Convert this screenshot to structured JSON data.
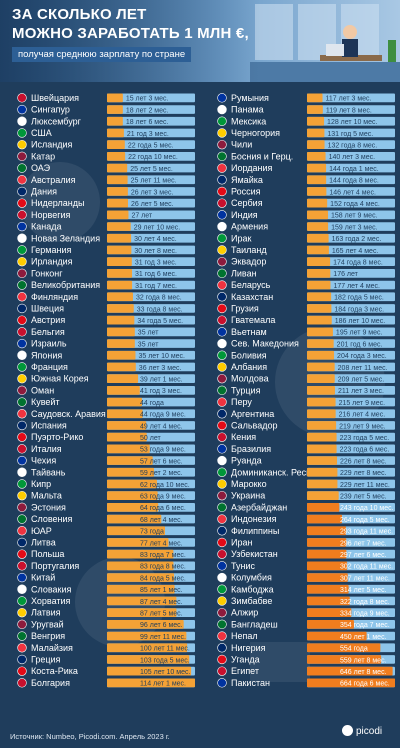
{
  "title": {
    "line1": "ЗА СКОЛЬКО ЛЕТ",
    "line2": "МОЖНО ЗАРАБОТАТЬ 1 МЛН €,",
    "subtitle": "получая среднюю зарплату по стране"
  },
  "footer": {
    "source": "Источник: Numbeo, Picodi.com. Апрель 2023 г.",
    "logo": "picodi"
  },
  "colors": {
    "background": "#1f3d5c",
    "bar_blue": "#8ec5ea",
    "bar_orange": "#f4a236",
    "bar_orange_dark": "#f07d1e",
    "label": "#ffffff"
  },
  "chart_data": {
    "type": "bar",
    "orientation": "horizontal",
    "unit": "years to earn 1 million €",
    "series": [
      {
        "country": "Швейцария",
        "label": "15 лет 3 мес.",
        "value": 15.25
      },
      {
        "country": "Сингапур",
        "label": "18 лет 2 мес.",
        "value": 18.17
      },
      {
        "country": "Люксембург",
        "label": "18 лет 6 мес.",
        "value": 18.5
      },
      {
        "country": "США",
        "label": "21 год 3 мес.",
        "value": 21.25
      },
      {
        "country": "Исландия",
        "label": "22 года 5 мес.",
        "value": 22.42
      },
      {
        "country": "Катар",
        "label": "22 года 10 мес.",
        "value": 22.83
      },
      {
        "country": "ОАЭ",
        "label": "25 лет 5 мес.",
        "value": 25.42
      },
      {
        "country": "Австралия",
        "label": "25 лет 11 мес.",
        "value": 25.92
      },
      {
        "country": "Дания",
        "label": "26 лет 3 мес.",
        "value": 26.25
      },
      {
        "country": "Нидерланды",
        "label": "26 лет 5 мес.",
        "value": 26.42
      },
      {
        "country": "Норвегия",
        "label": "27 лет",
        "value": 27.0
      },
      {
        "country": "Канада",
        "label": "29 лет 10 мес.",
        "value": 29.83
      },
      {
        "country": "Новая Зеландия",
        "label": "30 лет 4 мес.",
        "value": 30.33
      },
      {
        "country": "Германия",
        "label": "30 лет 8 мес.",
        "value": 30.67
      },
      {
        "country": "Ирландия",
        "label": "31 год 3 мес.",
        "value": 31.25
      },
      {
        "country": "Гонконг",
        "label": "31 год 6 мес.",
        "value": 31.5
      },
      {
        "country": "Великобритания",
        "label": "31 год 7 мес.",
        "value": 31.58
      },
      {
        "country": "Финляндия",
        "label": "32 года 8 мес.",
        "value": 32.67
      },
      {
        "country": "Швеция",
        "label": "33 года 8 мес.",
        "value": 33.67
      },
      {
        "country": "Австрия",
        "label": "34 года 5 мес.",
        "value": 34.42
      },
      {
        "country": "Бельгия",
        "label": "35 лет",
        "value": 35.0
      },
      {
        "country": "Израиль",
        "label": "35 лет",
        "value": 35.0
      },
      {
        "country": "Япония",
        "label": "35 лет 10 мес.",
        "value": 35.83
      },
      {
        "country": "Франция",
        "label": "36 лет 3 мес.",
        "value": 36.25
      },
      {
        "country": "Южная Корея",
        "label": "39 лет 1 мес.",
        "value": 39.08
      },
      {
        "country": "Оман",
        "label": "41 год 3 мес.",
        "value": 41.25
      },
      {
        "country": "Кувейт",
        "label": "44 года",
        "value": 44.0
      },
      {
        "country": "Саудовск. Аравия",
        "label": "44 года 9 мес.",
        "value": 44.75
      },
      {
        "country": "Испания",
        "label": "49 лет 4 мес.",
        "value": 49.33
      },
      {
        "country": "Пуэрто-Рико",
        "label": "50 лет",
        "value": 50.0
      },
      {
        "country": "Италия",
        "label": "53 года 9 мес.",
        "value": 53.75
      },
      {
        "country": "Чехия",
        "label": "57 лет 6 мес.",
        "value": 57.5
      },
      {
        "country": "Тайвань",
        "label": "59 лет 2 мес.",
        "value": 59.17
      },
      {
        "country": "Кипр",
        "label": "62 года 10 мес.",
        "value": 62.83
      },
      {
        "country": "Мальта",
        "label": "63 года 9 мес.",
        "value": 63.75
      },
      {
        "country": "Эстония",
        "label": "64 года 6 мес.",
        "value": 64.5
      },
      {
        "country": "Словения",
        "label": "68 лет 4 мес.",
        "value": 68.33
      },
      {
        "country": "ЮАР",
        "label": "73 года",
        "value": 73.0
      },
      {
        "country": "Литва",
        "label": "77 лет 4 мес.",
        "value": 77.33
      },
      {
        "country": "Польша",
        "label": "83 года 7 мес.",
        "value": 83.58
      },
      {
        "country": "Португалия",
        "label": "83 года 8 мес.",
        "value": 83.67
      },
      {
        "country": "Китай",
        "label": "84 года 5 мес.",
        "value": 84.42
      },
      {
        "country": "Словакия",
        "label": "85 лет 1 мес.",
        "value": 85.08
      },
      {
        "country": "Хорватия",
        "label": "87 лет 4 мес.",
        "value": 87.33
      },
      {
        "country": "Латвия",
        "label": "87 лет 5 мес.",
        "value": 87.42
      },
      {
        "country": "Уругвай",
        "label": "96 лет 6 мес.",
        "value": 96.5
      },
      {
        "country": "Венгрия",
        "label": "99 лет 11 мес.",
        "value": 99.92
      },
      {
        "country": "Малайзия",
        "label": "100 лет 11 мес.",
        "value": 100.92
      },
      {
        "country": "Греция",
        "label": "103 года 5 мес.",
        "value": 103.42
      },
      {
        "country": "Коста-Рика",
        "label": "105 лет 10 мес.",
        "value": 105.83
      },
      {
        "country": "Болгария",
        "label": "114 лет 1 мес.",
        "value": 114.08
      },
      {
        "country": "Румыния",
        "label": "117 лет 3 мес.",
        "value": 117.25
      },
      {
        "country": "Панама",
        "label": "119 лет 8 мес.",
        "value": 119.67
      },
      {
        "country": "Мексика",
        "label": "128 лет 10 мес.",
        "value": 128.83
      },
      {
        "country": "Черногория",
        "label": "131 год 5 мес.",
        "value": 131.42
      },
      {
        "country": "Чили",
        "label": "132 года 8 мес.",
        "value": 132.67
      },
      {
        "country": "Босния и Герц.",
        "label": "140 лет 3 мес.",
        "value": 140.25
      },
      {
        "country": "Иордания",
        "label": "144 года 1 мес.",
        "value": 144.08
      },
      {
        "country": "Ямайка",
        "label": "144 года 8 мес.",
        "value": 144.67
      },
      {
        "country": "Россия",
        "label": "146 лет 4 мес.",
        "value": 146.33
      },
      {
        "country": "Сербия",
        "label": "152 года 4 мес.",
        "value": 152.33
      },
      {
        "country": "Индия",
        "label": "158 лет 9 мес.",
        "value": 158.75
      },
      {
        "country": "Армения",
        "label": "159 лет 3 мес.",
        "value": 159.25
      },
      {
        "country": "Ирак",
        "label": "163 года 2 мес.",
        "value": 163.17
      },
      {
        "country": "Таиланд",
        "label": "165 лет 4 мес.",
        "value": 165.33
      },
      {
        "country": "Эквадор",
        "label": "174 года 8 мес.",
        "value": 174.67
      },
      {
        "country": "Ливан",
        "label": "176 лет",
        "value": 176.0
      },
      {
        "country": "Беларусь",
        "label": "177 лет 4 мес.",
        "value": 177.33
      },
      {
        "country": "Казахстан",
        "label": "182 года 5 мес.",
        "value": 182.42
      },
      {
        "country": "Грузия",
        "label": "184 года 3 мес.",
        "value": 184.25
      },
      {
        "country": "Гватемала",
        "label": "186 лет 10 мес.",
        "value": 186.83
      },
      {
        "country": "Вьетнам",
        "label": "195 лет 9 мес.",
        "value": 195.75
      },
      {
        "country": "Сев. Македония",
        "label": "201 год 6 мес.",
        "value": 201.5
      },
      {
        "country": "Боливия",
        "label": "204 года 3 мес.",
        "value": 204.25
      },
      {
        "country": "Албания",
        "label": "208 лет 11 мес.",
        "value": 208.92
      },
      {
        "country": "Молдова",
        "label": "209 лет 5 мес.",
        "value": 209.42
      },
      {
        "country": "Турция",
        "label": "211 лет 3 мес.",
        "value": 211.25
      },
      {
        "country": "Перу",
        "label": "215 лет 9 мес.",
        "value": 215.75
      },
      {
        "country": "Аргентина",
        "label": "216 лет 4 мес.",
        "value": 216.33
      },
      {
        "country": "Сальвадор",
        "label": "219 лет 9 мес.",
        "value": 219.75
      },
      {
        "country": "Кения",
        "label": "223 года 5 мес.",
        "value": 223.42
      },
      {
        "country": "Бразилия",
        "label": "223 года 6 мес.",
        "value": 223.5
      },
      {
        "country": "Руанда",
        "label": "226 лет 8 мес.",
        "value": 226.67
      },
      {
        "country": "Доминиканск. Респ.",
        "label": "229 лет 8 мес.",
        "value": 229.67
      },
      {
        "country": "Марокко",
        "label": "229 лет 11 мес.",
        "value": 229.92
      },
      {
        "country": "Украина",
        "label": "239 лет 5 мес.",
        "value": 239.42
      },
      {
        "country": "Азербайджан",
        "label": "243 года 10 мес.",
        "value": 243.83
      },
      {
        "country": "Индонезия",
        "label": "264 года 5 мес.",
        "value": 264.42
      },
      {
        "country": "Филиппины",
        "label": "293 года 11 мес.",
        "value": 293.92
      },
      {
        "country": "Иран",
        "label": "296 лет 7 мес.",
        "value": 296.58
      },
      {
        "country": "Узбекистан",
        "label": "297 лет 6 мес.",
        "value": 297.5
      },
      {
        "country": "Тунис",
        "label": "302 года 11 мес.",
        "value": 302.92
      },
      {
        "country": "Колумбия",
        "label": "307 лет 11 мес.",
        "value": 307.92
      },
      {
        "country": "Камбоджа",
        "label": "314 лет 5 мес.",
        "value": 314.42
      },
      {
        "country": "Зимбабве",
        "label": "322 года 8 мес.",
        "value": 322.67
      },
      {
        "country": "Алжир",
        "label": "334 года 9 мес.",
        "value": 334.75
      },
      {
        "country": "Бангладеш",
        "label": "354 года 7 мес.",
        "value": 354.58
      },
      {
        "country": "Непал",
        "label": "450 лет 1 мес.",
        "value": 450.08
      },
      {
        "country": "Нигерия",
        "label": "554 года",
        "value": 554.0
      },
      {
        "country": "Уганда",
        "label": "559 лет 8 мес.",
        "value": 559.67
      },
      {
        "country": "Египет",
        "label": "646 лет 8 мес.",
        "value": 646.67
      },
      {
        "country": "Пакистан",
        "label": "664 года 6 мес.",
        "value": 664.5
      }
    ]
  }
}
